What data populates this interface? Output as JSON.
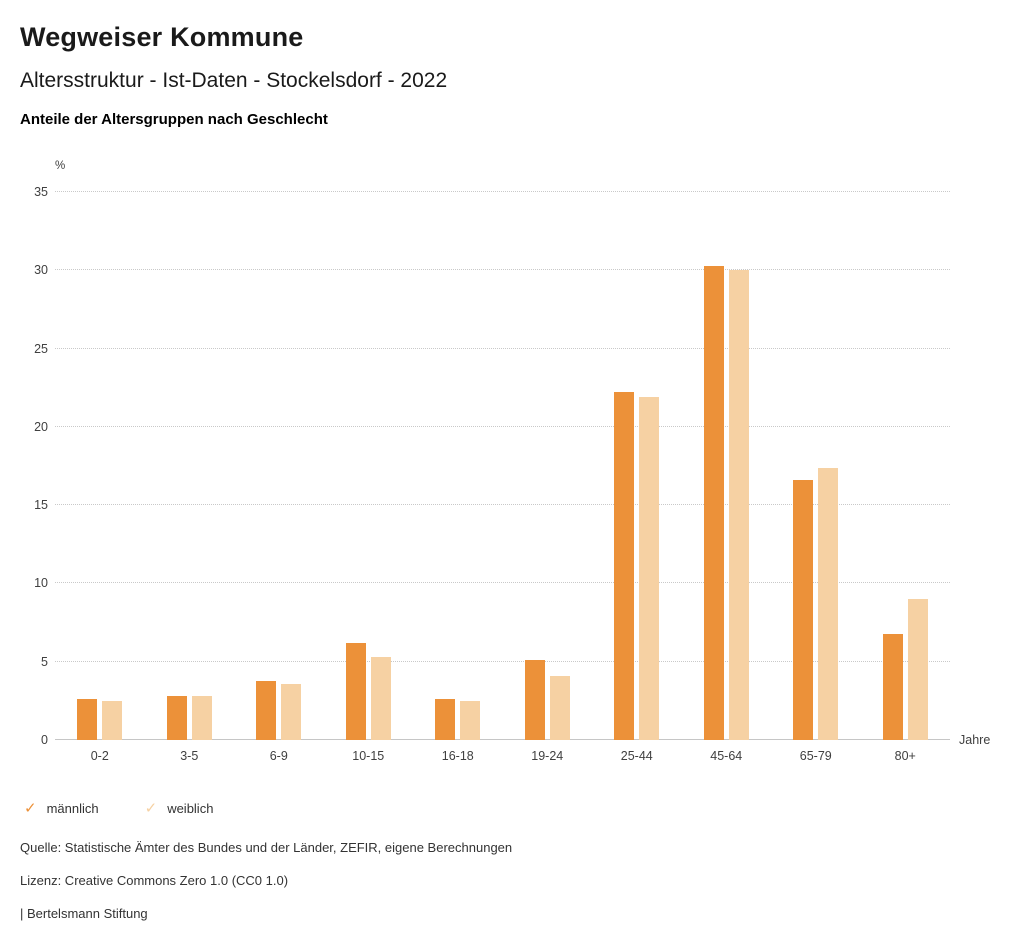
{
  "header": {
    "title": "Wegweiser Kommune",
    "subtitle": "Altersstruktur - Ist-Daten - Stockelsdorf - 2022",
    "caption": "Anteile der Altersgruppen nach Geschlecht"
  },
  "chart_data": {
    "type": "bar",
    "categories": [
      "0-2",
      "3-5",
      "6-9",
      "10-15",
      "16-18",
      "19-24",
      "25-44",
      "45-64",
      "65-79",
      "80+"
    ],
    "series": [
      {
        "name": "männlich",
        "color": "#EC9139",
        "values": [
          2.6,
          2.8,
          3.8,
          6.2,
          2.6,
          5.1,
          22.2,
          30.3,
          16.6,
          6.8
        ]
      },
      {
        "name": "weiblich",
        "color": "#F6D1A3",
        "values": [
          2.5,
          2.8,
          3.6,
          5.3,
          2.5,
          4.1,
          21.9,
          30.0,
          17.4,
          9.0
        ]
      }
    ],
    "title": "Anteile der Altersgruppen nach Geschlecht",
    "xlabel": "Jahre",
    "ylabel": "%",
    "ylim": [
      0,
      35
    ],
    "yticks": [
      0,
      5,
      10,
      15,
      20,
      25,
      30,
      35
    ],
    "grid": "horizontal-dotted",
    "legend_position": "bottom-left",
    "legend_marker": "check-icon"
  },
  "footer": {
    "source": "Quelle: Statistische Ämter des Bundes und der Länder, ZEFIR, eigene Berechnungen",
    "license": "Lizenz: Creative Commons Zero 1.0 (CC0 1.0)",
    "brand": "| Bertelsmann Stiftung"
  }
}
